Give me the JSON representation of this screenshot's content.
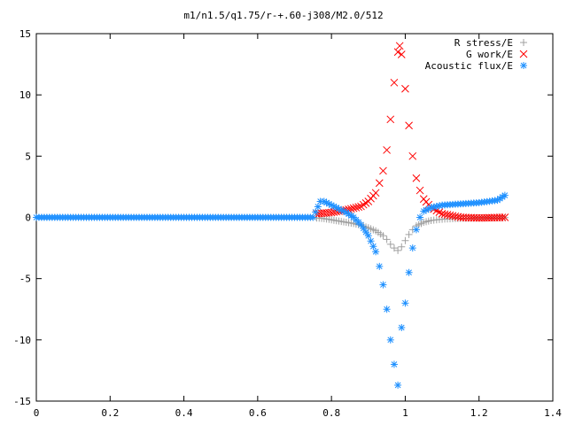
{
  "chart_data": {
    "type": "scatter",
    "title": "m1/n1.5/q1.75/r-+.60-j308/M2.0/512",
    "xlabel": "",
    "ylabel": "",
    "xlim": [
      0,
      1.4
    ],
    "ylim": [
      -15,
      15
    ],
    "xticks": [
      0,
      0.2,
      0.4,
      0.6,
      0.8,
      1,
      1.2,
      1.4
    ],
    "xtick_labels": [
      "0",
      "0.2",
      "0.4",
      "0.6",
      "0.8",
      "1",
      "1.2",
      "1.4"
    ],
    "yticks": [
      -15,
      -10,
      -5,
      0,
      5,
      10,
      15
    ],
    "ytick_labels": [
      "-15",
      "-10",
      "-5",
      "0",
      "5",
      "10",
      "15"
    ],
    "grid": false,
    "legend_position": "top-right",
    "series": [
      {
        "name": "R stress/E",
        "marker": "+",
        "color": "#a0a0a0",
        "points": [
          [
            0.76,
            -0.05
          ],
          [
            0.78,
            -0.1
          ],
          [
            0.8,
            -0.2
          ],
          [
            0.82,
            -0.3
          ],
          [
            0.84,
            -0.4
          ],
          [
            0.86,
            -0.5
          ],
          [
            0.88,
            -0.65
          ],
          [
            0.9,
            -0.85
          ],
          [
            0.92,
            -1.1
          ],
          [
            0.94,
            -1.5
          ],
          [
            0.95,
            -1.8
          ],
          [
            0.96,
            -2.2
          ],
          [
            0.97,
            -2.5
          ],
          [
            0.98,
            -2.7
          ],
          [
            0.99,
            -2.4
          ],
          [
            1.0,
            -1.9
          ],
          [
            1.01,
            -1.4
          ],
          [
            1.02,
            -1.0
          ],
          [
            1.03,
            -0.7
          ],
          [
            1.05,
            -0.4
          ],
          [
            1.07,
            -0.25
          ],
          [
            1.1,
            -0.15
          ],
          [
            1.15,
            -0.08
          ],
          [
            1.2,
            -0.05
          ],
          [
            1.27,
            -0.02
          ]
        ]
      },
      {
        "name": "G work/E",
        "marker": "x",
        "color": "#ff0000",
        "points": [
          [
            0.76,
            0.3
          ],
          [
            0.8,
            0.4
          ],
          [
            0.84,
            0.6
          ],
          [
            0.88,
            0.9
          ],
          [
            0.9,
            1.3
          ],
          [
            0.92,
            2.0
          ],
          [
            0.93,
            2.8
          ],
          [
            0.94,
            3.8
          ],
          [
            0.95,
            5.5
          ],
          [
            0.96,
            8.0
          ],
          [
            0.97,
            11.0
          ],
          [
            0.98,
            13.5
          ],
          [
            0.985,
            14.0
          ],
          [
            0.99,
            13.3
          ],
          [
            1.0,
            10.5
          ],
          [
            1.01,
            7.5
          ],
          [
            1.02,
            5.0
          ],
          [
            1.03,
            3.2
          ],
          [
            1.04,
            2.2
          ],
          [
            1.05,
            1.5
          ],
          [
            1.07,
            0.8
          ],
          [
            1.1,
            0.3
          ],
          [
            1.15,
            0.0
          ],
          [
            1.2,
            -0.05
          ],
          [
            1.27,
            0.0
          ]
        ]
      },
      {
        "name": "Acoustic flux/E",
        "marker": "*",
        "color": "#1e90ff",
        "points": [
          [
            0.0,
            0.0
          ],
          [
            0.1,
            0.0
          ],
          [
            0.2,
            0.0
          ],
          [
            0.3,
            0.0
          ],
          [
            0.4,
            0.0
          ],
          [
            0.5,
            0.0
          ],
          [
            0.6,
            0.0
          ],
          [
            0.7,
            0.0
          ],
          [
            0.75,
            0.0
          ],
          [
            0.77,
            1.3
          ],
          [
            0.78,
            1.3
          ],
          [
            0.8,
            1.0
          ],
          [
            0.82,
            0.7
          ],
          [
            0.84,
            0.4
          ],
          [
            0.86,
            0.0
          ],
          [
            0.88,
            -0.6
          ],
          [
            0.9,
            -1.5
          ],
          [
            0.92,
            -2.8
          ],
          [
            0.93,
            -4.0
          ],
          [
            0.94,
            -5.5
          ],
          [
            0.95,
            -7.5
          ],
          [
            0.96,
            -10.0
          ],
          [
            0.97,
            -12.0
          ],
          [
            0.98,
            -13.7
          ],
          [
            0.99,
            -9.0
          ],
          [
            1.0,
            -7.0
          ],
          [
            1.01,
            -4.5
          ],
          [
            1.02,
            -2.5
          ],
          [
            1.03,
            -1.0
          ],
          [
            1.04,
            0.0
          ],
          [
            1.05,
            0.5
          ],
          [
            1.07,
            0.8
          ],
          [
            1.1,
            1.0
          ],
          [
            1.15,
            1.1
          ],
          [
            1.2,
            1.2
          ],
          [
            1.25,
            1.4
          ],
          [
            1.27,
            1.8
          ]
        ]
      }
    ]
  }
}
